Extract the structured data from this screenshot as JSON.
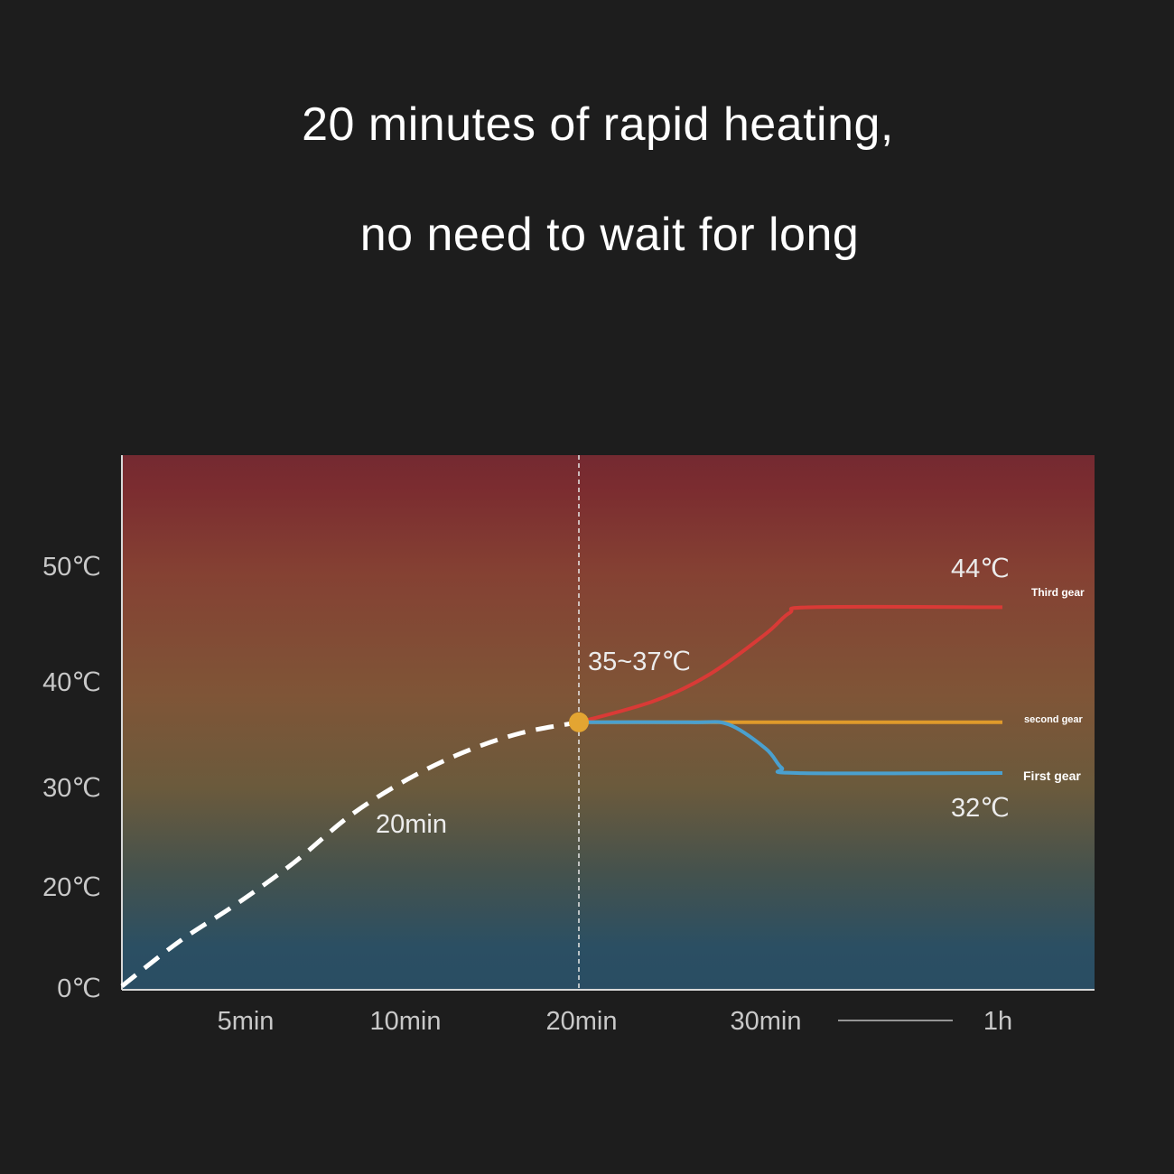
{
  "headline": {
    "line1": "20 minutes of rapid heating,",
    "line2": "no need to wait for long"
  },
  "chart_data": {
    "type": "line",
    "title": "",
    "xlabel": "",
    "ylabel": "",
    "x_ticks": [
      "5min",
      "10min",
      "20min",
      "30min",
      "1h"
    ],
    "y_ticks": [
      "0℃",
      "20℃",
      "30℃",
      "40℃",
      "50℃"
    ],
    "y_tick_values": [
      0,
      20,
      30,
      40,
      50
    ],
    "x_break_between": [
      "30min",
      "1h"
    ],
    "background": "vertical temperature gradient from blue (bottom) to red (top)",
    "annotations": {
      "heating_label": "20min",
      "range_label": "35~37℃",
      "high_label": "44℃",
      "low_label": "32℃"
    },
    "marker": {
      "x": 20,
      "y": 36
    },
    "series": [
      {
        "name": "",
        "style": "dashed",
        "color": "#ffffff",
        "x": [
          0,
          2.5,
          5,
          7.5,
          10,
          12.5,
          15,
          17.5,
          20
        ],
        "y": [
          0,
          8.8,
          16.2,
          22.2,
          27.0,
          30.6,
          33.2,
          35.0,
          36.0
        ]
      },
      {
        "name": "Third gear",
        "color": "#d93a36",
        "x": [
          20,
          24,
          27,
          30,
          33,
          36,
          60
        ],
        "y": [
          36,
          38.0,
          40.5,
          44.0,
          45.8,
          46.3,
          46.3
        ]
      },
      {
        "name": "second gear",
        "color": "#e09a2b",
        "x": [
          20,
          60
        ],
        "y": [
          36,
          36
        ]
      },
      {
        "name": "First gear",
        "color": "#4aa0cf",
        "x": [
          20,
          26,
          28,
          30,
          32,
          34,
          60
        ],
        "y": [
          36,
          36,
          35.8,
          33.5,
          31.7,
          31.2,
          31.2
        ]
      }
    ]
  }
}
